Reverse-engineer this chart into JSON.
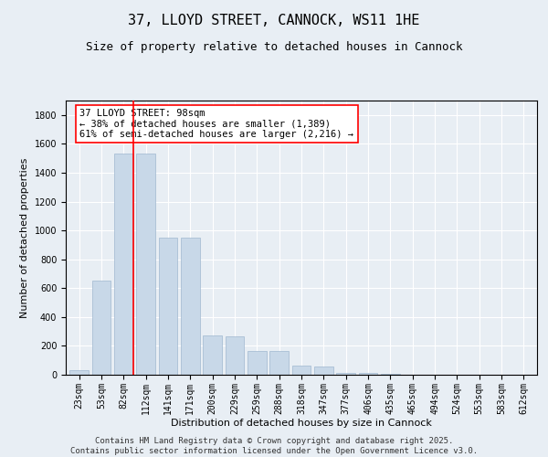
{
  "title": "37, LLOYD STREET, CANNOCK, WS11 1HE",
  "subtitle": "Size of property relative to detached houses in Cannock",
  "xlabel": "Distribution of detached houses by size in Cannock",
  "ylabel": "Number of detached properties",
  "categories": [
    "23sqm",
    "53sqm",
    "82sqm",
    "112sqm",
    "141sqm",
    "171sqm",
    "200sqm",
    "229sqm",
    "259sqm",
    "288sqm",
    "318sqm",
    "347sqm",
    "377sqm",
    "406sqm",
    "435sqm",
    "465sqm",
    "494sqm",
    "524sqm",
    "553sqm",
    "583sqm",
    "612sqm"
  ],
  "values": [
    30,
    650,
    1530,
    1530,
    950,
    950,
    270,
    265,
    165,
    165,
    65,
    60,
    15,
    10,
    5,
    3,
    3,
    2,
    2,
    2,
    2
  ],
  "bar_color": "#c8d8e8",
  "bar_edge_color": "#a0b8d0",
  "vline_color": "red",
  "vline_pos": 2.43,
  "annotation_text": "37 LLOYD STREET: 98sqm\n← 38% of detached houses are smaller (1,389)\n61% of semi-detached houses are larger (2,216) →",
  "annotation_box_color": "white",
  "annotation_box_edge": "red",
  "ylim": [
    0,
    1900
  ],
  "yticks": [
    0,
    200,
    400,
    600,
    800,
    1000,
    1200,
    1400,
    1600,
    1800
  ],
  "background_color": "#e8eef4",
  "footer_line1": "Contains HM Land Registry data © Crown copyright and database right 2025.",
  "footer_line2": "Contains public sector information licensed under the Open Government Licence v3.0.",
  "title_fontsize": 11,
  "subtitle_fontsize": 9,
  "axis_label_fontsize": 8,
  "tick_fontsize": 7,
  "annotation_fontsize": 7.5,
  "footer_fontsize": 6.5
}
